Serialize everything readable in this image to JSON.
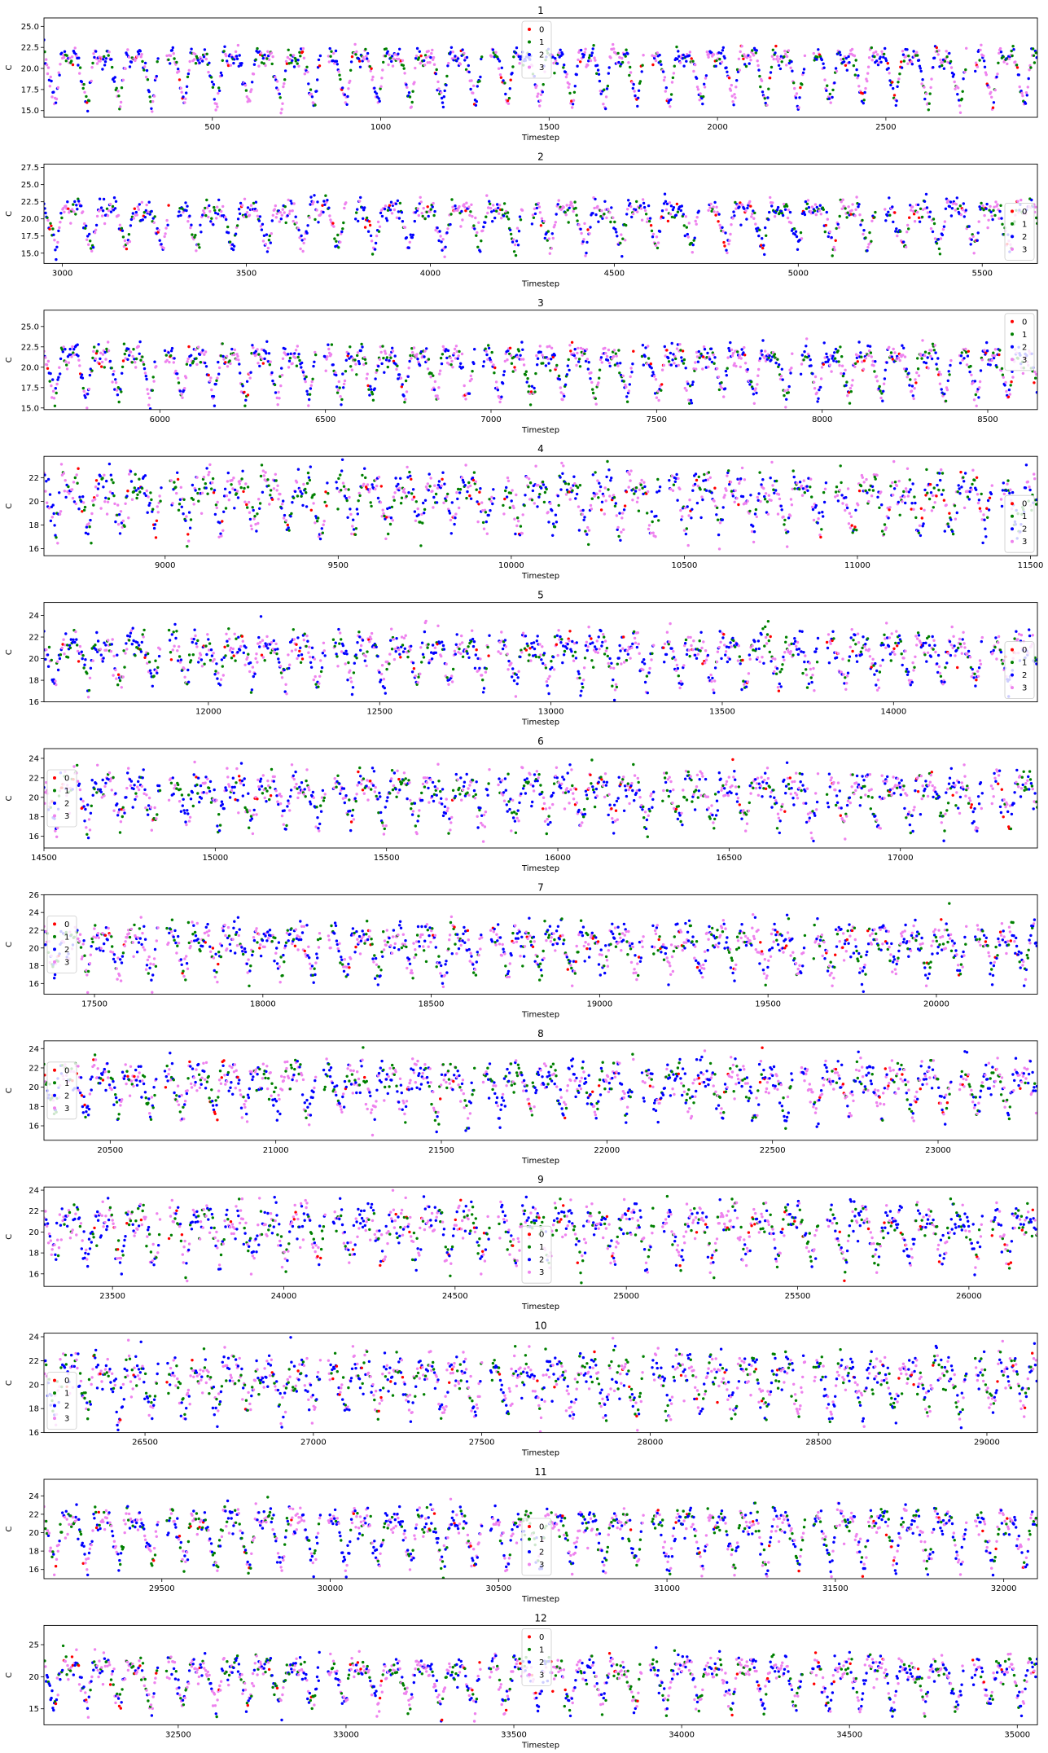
{
  "colors": {
    "0": "#ff0000",
    "1": "#008000",
    "2": "#0000ff",
    "3": "#ee82ee"
  },
  "chart_data": [
    {
      "type": "scatter",
      "title": "1",
      "xlabel": "Timestep",
      "ylabel": "C",
      "xlim": [
        0,
        2950
      ],
      "ylim": [
        14.2,
        26
      ],
      "xticks": [
        500,
        1000,
        1500,
        2000,
        2500
      ],
      "yticks": [
        15.0,
        17.5,
        20.0,
        22.5,
        25.0
      ],
      "ytick_labels": [
        "15.0",
        "17.5",
        "20.0",
        "22.5",
        "25.0"
      ],
      "legend": "top-center",
      "series_names": [
        "0",
        "1",
        "2",
        "3"
      ],
      "period": 96,
      "base": 21.0,
      "amp": 2.5,
      "noise": 0.5,
      "low": 15.5,
      "gap_phase": 0.25
    },
    {
      "type": "scatter",
      "title": "2",
      "xlabel": "Timestep",
      "ylabel": "C",
      "xlim": [
        2950,
        5650
      ],
      "ylim": [
        13.5,
        28
      ],
      "xticks": [
        3000,
        3500,
        4000,
        4500,
        5000,
        5500
      ],
      "yticks": [
        15.0,
        17.5,
        20.0,
        22.5,
        25.0,
        27.5
      ],
      "ytick_labels": [
        "15.0",
        "17.5",
        "20.0",
        "22.5",
        "25.0",
        "27.5"
      ],
      "legend": "bottom-right",
      "series_names": [
        "0",
        "1",
        "2",
        "3"
      ],
      "period": 96,
      "base": 21.0,
      "amp": 2.5,
      "noise": 0.8,
      "low": 15.5,
      "gap_phase": 0.25
    },
    {
      "type": "scatter",
      "title": "3",
      "xlabel": "Timestep",
      "ylabel": "C",
      "xlim": [
        5650,
        8650
      ],
      "ylim": [
        14.8,
        27
      ],
      "xticks": [
        6000,
        6500,
        7000,
        7500,
        8000,
        8500
      ],
      "yticks": [
        15.0,
        17.5,
        20.0,
        22.5,
        25.0
      ],
      "ytick_labels": [
        "15.0",
        "17.5",
        "20.0",
        "22.5",
        "25.0"
      ],
      "legend": "top-right",
      "series_names": [
        "0",
        "1",
        "2",
        "3"
      ],
      "period": 96,
      "base": 21.0,
      "amp": 2.5,
      "noise": 0.7,
      "low": 16.0,
      "gap_phase": 0.25
    },
    {
      "type": "scatter",
      "title": "4",
      "xlabel": "Timestep",
      "ylabel": "C",
      "xlim": [
        8650,
        11520
      ],
      "ylim": [
        15.4,
        23.8
      ],
      "xticks": [
        9000,
        9500,
        10000,
        10500,
        11000,
        11500
      ],
      "yticks": [
        16,
        18,
        20,
        22
      ],
      "ytick_labels": [
        "16",
        "18",
        "20",
        "22"
      ],
      "legend": "bottom-right",
      "series_names": [
        "0",
        "1",
        "2",
        "3"
      ],
      "period": 96,
      "base": 20.8,
      "amp": 2.2,
      "noise": 0.8,
      "low": 17.5,
      "gap_phase": 0.25
    },
    {
      "type": "scatter",
      "title": "5",
      "xlabel": "Timestep",
      "ylabel": "C",
      "xlim": [
        11520,
        14420
      ],
      "ylim": [
        16,
        25.2
      ],
      "xticks": [
        12000,
        12500,
        13000,
        13500,
        14000
      ],
      "yticks": [
        16,
        18,
        20,
        22,
        24
      ],
      "ytick_labels": [
        "16",
        "18",
        "20",
        "22",
        "24"
      ],
      "legend": "bottom-right",
      "series_names": [
        "0",
        "1",
        "2",
        "3"
      ],
      "period": 96,
      "base": 20.8,
      "amp": 2.6,
      "noise": 0.7,
      "low": 17.5,
      "gap_phase": 0.25
    },
    {
      "type": "scatter",
      "title": "6",
      "xlabel": "Timestep",
      "ylabel": "C",
      "xlim": [
        14500,
        17400
      ],
      "ylim": [
        14.8,
        25
      ],
      "xticks": [
        14500,
        15000,
        15500,
        16000,
        16500,
        17000
      ],
      "yticks": [
        16,
        18,
        20,
        22,
        24
      ],
      "ytick_labels": [
        "16",
        "18",
        "20",
        "22",
        "24"
      ],
      "legend": "center-left",
      "series_names": [
        "0",
        "1",
        "2",
        "3"
      ],
      "period": 96,
      "base": 20.8,
      "amp": 2.6,
      "noise": 0.9,
      "low": 17.0,
      "gap_phase": 0.25
    },
    {
      "type": "scatter",
      "title": "7",
      "xlabel": "Timestep",
      "ylabel": "C",
      "xlim": [
        17350,
        20300
      ],
      "ylim": [
        14.8,
        26
      ],
      "xticks": [
        17500,
        18000,
        18500,
        19000,
        19500,
        20000
      ],
      "yticks": [
        16,
        18,
        20,
        22,
        24,
        26
      ],
      "ytick_labels": [
        "16",
        "18",
        "20",
        "22",
        "24",
        "26"
      ],
      "legend": "center-left",
      "series_names": [
        "0",
        "1",
        "2",
        "3"
      ],
      "period": 96,
      "base": 20.8,
      "amp": 2.8,
      "noise": 0.9,
      "low": 17.0,
      "gap_phase": 0.25
    },
    {
      "type": "scatter",
      "title": "8",
      "xlabel": "Timestep",
      "ylabel": "C",
      "xlim": [
        20300,
        23300
      ],
      "ylim": [
        14.5,
        24.8
      ],
      "xticks": [
        20500,
        21000,
        21500,
        22000,
        22500,
        23000
      ],
      "yticks": [
        16,
        18,
        20,
        22,
        24
      ],
      "ytick_labels": [
        "16",
        "18",
        "20",
        "22",
        "24"
      ],
      "legend": "center-left",
      "series_names": [
        "0",
        "1",
        "2",
        "3"
      ],
      "period": 96,
      "base": 20.8,
      "amp": 2.6,
      "noise": 0.9,
      "low": 17.0,
      "gap_phase": 0.25
    },
    {
      "type": "scatter",
      "title": "9",
      "xlabel": "Timestep",
      "ylabel": "C",
      "xlim": [
        23300,
        26200
      ],
      "ylim": [
        14.8,
        24.3
      ],
      "xticks": [
        23500,
        24000,
        24500,
        25000,
        25500,
        26000
      ],
      "yticks": [
        16,
        18,
        20,
        22,
        24
      ],
      "ytick_labels": [
        "16",
        "18",
        "20",
        "22",
        "24"
      ],
      "legend": "bottom-center",
      "series_names": [
        "0",
        "1",
        "2",
        "3"
      ],
      "period": 96,
      "base": 20.8,
      "amp": 2.6,
      "noise": 0.9,
      "low": 17.0,
      "gap_phase": 0.25
    },
    {
      "type": "scatter",
      "title": "10",
      "xlabel": "Timestep",
      "ylabel": "C",
      "xlim": [
        26200,
        29150
      ],
      "ylim": [
        16,
        24.3
      ],
      "xticks": [
        26500,
        27000,
        27500,
        28000,
        28500,
        29000
      ],
      "yticks": [
        16,
        18,
        20,
        22,
        24
      ],
      "ytick_labels": [
        "16",
        "18",
        "20",
        "22",
        "24"
      ],
      "legend": "bottom-left",
      "series_names": [
        "0",
        "1",
        "2",
        "3"
      ],
      "period": 96,
      "base": 20.8,
      "amp": 2.4,
      "noise": 0.8,
      "low": 17.5,
      "gap_phase": 0.25
    },
    {
      "type": "scatter",
      "title": "11",
      "xlabel": "Timestep",
      "ylabel": "C",
      "xlim": [
        29150,
        32100
      ],
      "ylim": [
        15,
        25.8
      ],
      "xticks": [
        29500,
        30000,
        30500,
        31000,
        31500,
        32000
      ],
      "yticks": [
        16,
        18,
        20,
        22,
        24
      ],
      "ytick_labels": [
        "16",
        "18",
        "20",
        "22",
        "24"
      ],
      "legend": "bottom-center",
      "series_names": [
        "0",
        "1",
        "2",
        "3"
      ],
      "period": 96,
      "base": 21.0,
      "amp": 2.2,
      "noise": 0.7,
      "low": 16.0,
      "gap_phase": 0.25
    },
    {
      "type": "scatter",
      "title": "12",
      "xlabel": "Timestep",
      "ylabel": "C",
      "xlim": [
        32100,
        35060
      ],
      "ylim": [
        12.5,
        28
      ],
      "xticks": [
        32500,
        33000,
        33500,
        34000,
        34500,
        35000
      ],
      "yticks": [
        15,
        20,
        25
      ],
      "ytick_labels": [
        "15",
        "20",
        "25"
      ],
      "legend": "top-center",
      "series_names": [
        "0",
        "1",
        "2",
        "3"
      ],
      "period": 96,
      "base": 21.0,
      "amp": 2.6,
      "noise": 1.0,
      "low": 15.0,
      "gap_phase": 0.25
    }
  ]
}
